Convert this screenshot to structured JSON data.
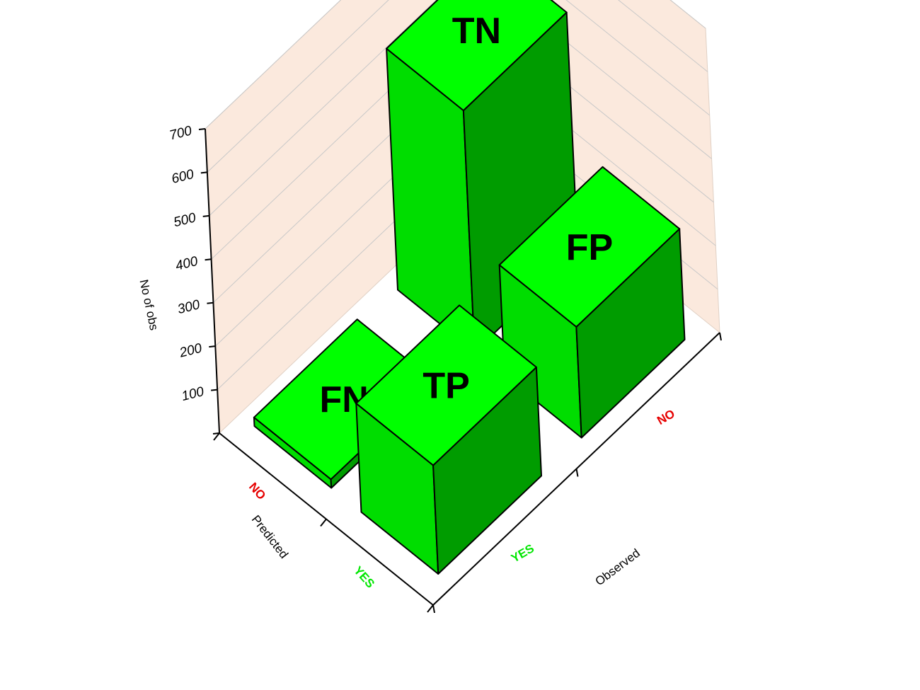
{
  "chart_data": {
    "type": "bar3d",
    "zlabel": "No of obs",
    "xlabel": "Predicted",
    "ylabel": "Observed",
    "zticks": [
      100,
      200,
      300,
      400,
      500,
      600,
      700
    ],
    "zlim": [
      0,
      700
    ],
    "predicted_categories": [
      {
        "label": "NO",
        "color": "#e60000"
      },
      {
        "label": "YES",
        "color": "#00e600"
      }
    ],
    "observed_categories": [
      {
        "label": "YES",
        "color": "#00e600"
      },
      {
        "label": "NO",
        "color": "#e60000"
      }
    ],
    "bars": [
      {
        "name": "TN",
        "predicted": "NO",
        "observed": "NO",
        "value": 555
      },
      {
        "name": "FP",
        "predicted": "YES",
        "observed": "NO",
        "value": 255
      },
      {
        "name": "FN",
        "predicted": "NO",
        "observed": "YES",
        "value": 20
      },
      {
        "name": "TP",
        "predicted": "YES",
        "observed": "YES",
        "value": 250
      }
    ],
    "colors": {
      "top": "#00ff00",
      "left": "#00dd00",
      "right": "#009c00",
      "wall": "#fbe9dd"
    }
  }
}
